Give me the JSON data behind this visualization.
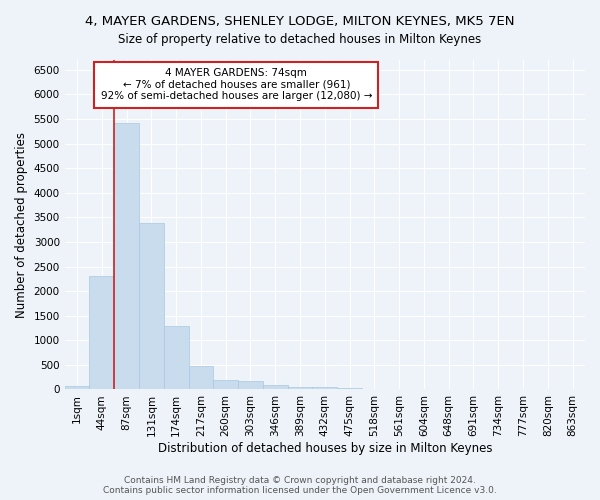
{
  "title": "4, MAYER GARDENS, SHENLEY LODGE, MILTON KEYNES, MK5 7EN",
  "subtitle": "Size of property relative to detached houses in Milton Keynes",
  "xlabel": "Distribution of detached houses by size in Milton Keynes",
  "ylabel": "Number of detached properties",
  "categories": [
    "1sqm",
    "44sqm",
    "87sqm",
    "131sqm",
    "174sqm",
    "217sqm",
    "260sqm",
    "303sqm",
    "346sqm",
    "389sqm",
    "432sqm",
    "475sqm",
    "518sqm",
    "561sqm",
    "604sqm",
    "648sqm",
    "691sqm",
    "734sqm",
    "777sqm",
    "820sqm",
    "863sqm"
  ],
  "bar_values": [
    75,
    2300,
    5420,
    3380,
    1300,
    475,
    200,
    180,
    85,
    60,
    45,
    20,
    15,
    10,
    5,
    5,
    3,
    3,
    2,
    2,
    2
  ],
  "bar_color": "#c9dcee",
  "bar_edge_color": "#a8c8e0",
  "highlight_bar_index": 1,
  "highlight_line_color": "#cc2222",
  "annotation_text": "4 MAYER GARDENS: 74sqm\n← 7% of detached houses are smaller (961)\n92% of semi-detached houses are larger (12,080) →",
  "annotation_box_color": "#ffffff",
  "annotation_border_color": "#cc2222",
  "ylim": [
    0,
    6700
  ],
  "yticks": [
    0,
    500,
    1000,
    1500,
    2000,
    2500,
    3000,
    3500,
    4000,
    4500,
    5000,
    5500,
    6000,
    6500
  ],
  "background_color": "#eef3f9",
  "plot_bg_color": "#eef3f9",
  "grid_color": "#ffffff",
  "footer_text": "Contains HM Land Registry data © Crown copyright and database right 2024.\nContains public sector information licensed under the Open Government Licence v3.0.",
  "title_fontsize": 9.5,
  "subtitle_fontsize": 8.5,
  "xlabel_fontsize": 8.5,
  "ylabel_fontsize": 8.5,
  "tick_fontsize": 7.5,
  "annotation_fontsize": 7.5,
  "footer_fontsize": 6.5
}
